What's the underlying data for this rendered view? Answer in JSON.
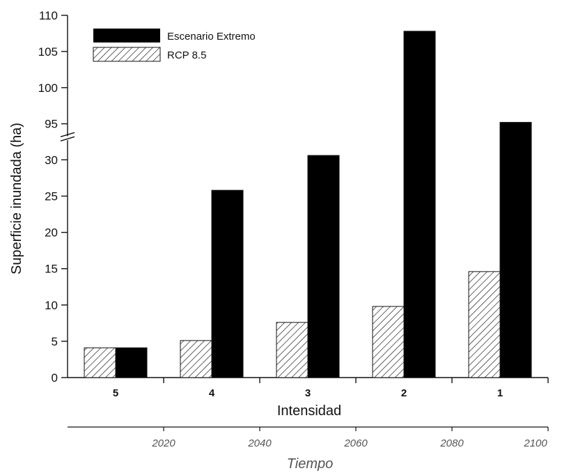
{
  "chart_data": {
    "type": "bar",
    "categories": [
      "5",
      "4",
      "3",
      "2",
      "1"
    ],
    "series": [
      {
        "name": "RCP 8.5",
        "values": [
          4.1,
          5.1,
          7.6,
          9.8,
          14.6
        ],
        "fill": "hatched"
      },
      {
        "name": "Escenario Extremo",
        "values": [
          4.1,
          25.8,
          30.6,
          107.8,
          95.2
        ],
        "fill": "#000000"
      }
    ],
    "xlabel": "Intensidad",
    "ylabel": "Superficie inundada (ha)",
    "y_axis_break": {
      "lower_range": [
        0,
        33
      ],
      "upper_range": [
        93,
        110
      ]
    },
    "yticks_lower": [
      "0",
      "5",
      "10",
      "15",
      "20",
      "25",
      "30"
    ],
    "yticks_upper": [
      "95",
      "100",
      "105",
      "110"
    ],
    "secondary_x_axis": {
      "label": "Tiempo",
      "ticks": [
        "2020",
        "2040",
        "2060",
        "2080",
        "2100"
      ]
    },
    "legend_position": "top-left",
    "grid": false
  }
}
